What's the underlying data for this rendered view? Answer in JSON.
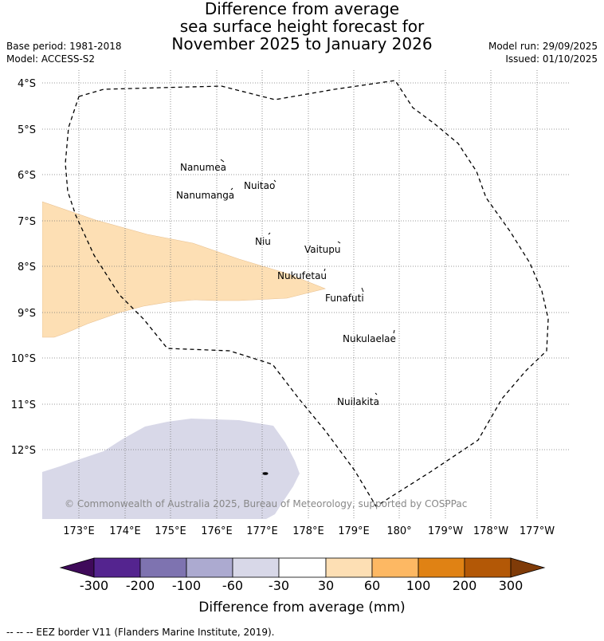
{
  "title": {
    "line1": "Difference from average",
    "line2": "sea surface height forecast for",
    "line3": "November 2025 to January 2026"
  },
  "meta": {
    "base_period": "Base period: 1981-2018",
    "model": "Model: ACCESS-S2",
    "model_run": "Model run: 29/09/2025",
    "issued": "Issued: 01/10/2025"
  },
  "map": {
    "lat_labels": [
      "4°S",
      "5°S",
      "6°S",
      "7°S",
      "8°S",
      "9°S",
      "10°S",
      "11°S",
      "12°S"
    ],
    "lon_labels": [
      "173°E",
      "174°E",
      "175°E",
      "176°E",
      "177°E",
      "178°E",
      "179°E",
      "180°",
      "179°W",
      "178°W",
      "177°W"
    ],
    "islands": [
      {
        "name": "Nanumea"
      },
      {
        "name": "Nuitao"
      },
      {
        "name": "Nanumanga"
      },
      {
        "name": "Niu"
      },
      {
        "name": "Vaitupu"
      },
      {
        "name": "Nukufetau"
      },
      {
        "name": "Funafuti"
      },
      {
        "name": "Nukulaelae"
      },
      {
        "name": "Nuilakita"
      }
    ],
    "copyright": "© Commonwealth of Australia 2025, Bureau of Meteorology, supported by COSPPac",
    "colors": {
      "positive_30_60": "#fddfb4",
      "negative_60_30": "#d8d8e8"
    }
  },
  "colorbar": {
    "labels": [
      "-300",
      "-200",
      "-100",
      "-60",
      "-30",
      "30",
      "60",
      "100",
      "200",
      "300"
    ],
    "colors": [
      "#3f0a5a",
      "#54248f",
      "#7e73b0",
      "#acaad0",
      "#d8d8e8",
      "#ffffff",
      "#fddfb4",
      "#fdb863",
      "#e08214",
      "#b35806",
      "#7f3b08"
    ],
    "title": "Difference from average (mm)"
  },
  "legend": {
    "eez": "-- -- -- EEZ border V11 (Flanders Marine Institute, 2019)."
  }
}
